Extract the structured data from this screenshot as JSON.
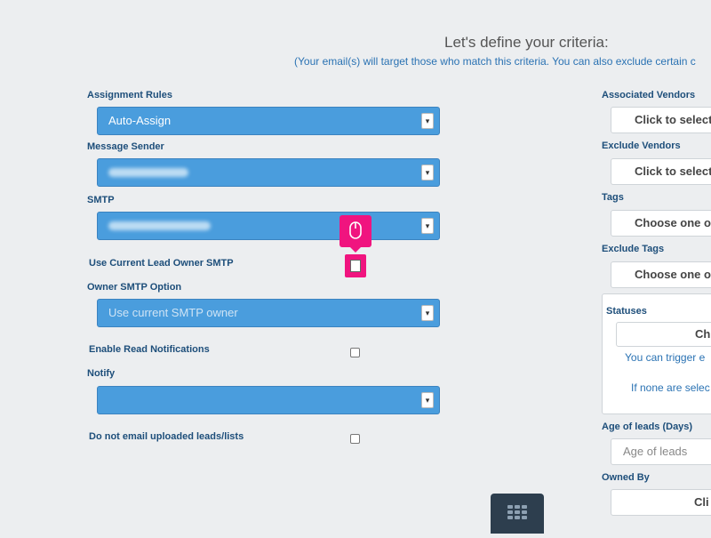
{
  "header": {
    "title": "Let's define your criteria:",
    "subtitle": "(Your email(s) will target those who match this criteria. You can also exclude certain c"
  },
  "left": {
    "assignment_rules": {
      "label": "Assignment Rules",
      "value": "Auto-Assign"
    },
    "message_sender": {
      "label": "Message Sender"
    },
    "smtp": {
      "label": "SMTP"
    },
    "use_current_owner": {
      "label": "Use Current Lead Owner SMTP"
    },
    "owner_smtp_option": {
      "label": "Owner SMTP Option",
      "value": "Use current SMTP owner"
    },
    "enable_read": {
      "label": "Enable Read Notifications"
    },
    "notify": {
      "label": "Notify"
    },
    "do_not_email": {
      "label": "Do not email uploaded leads/lists"
    }
  },
  "right": {
    "associated_vendors": {
      "label": "Associated Vendors",
      "placeholder": "Click to select"
    },
    "exclude_vendors": {
      "label": "Exclude Vendors",
      "placeholder": "Click to select"
    },
    "tags": {
      "label": "Tags",
      "placeholder": "Choose one or"
    },
    "exclude_tags": {
      "label": "Exclude Tags",
      "placeholder": "Choose one or"
    },
    "statuses": {
      "label": "Statuses",
      "placeholder": "Ch",
      "note1": "You can trigger e",
      "note2": "If none are selec"
    },
    "age": {
      "label": "Age of leads (Days)",
      "placeholder": "Age of leads"
    },
    "owned_by": {
      "label": "Owned By",
      "placeholder": "Cli"
    }
  },
  "icons": {
    "tooltip": "mouse-icon",
    "bottom": "grid-icon"
  },
  "colors": {
    "select_bg": "#4a9ddd",
    "accent": "#f0147f",
    "label": "#1d4e7a",
    "link": "#2a72b3"
  }
}
